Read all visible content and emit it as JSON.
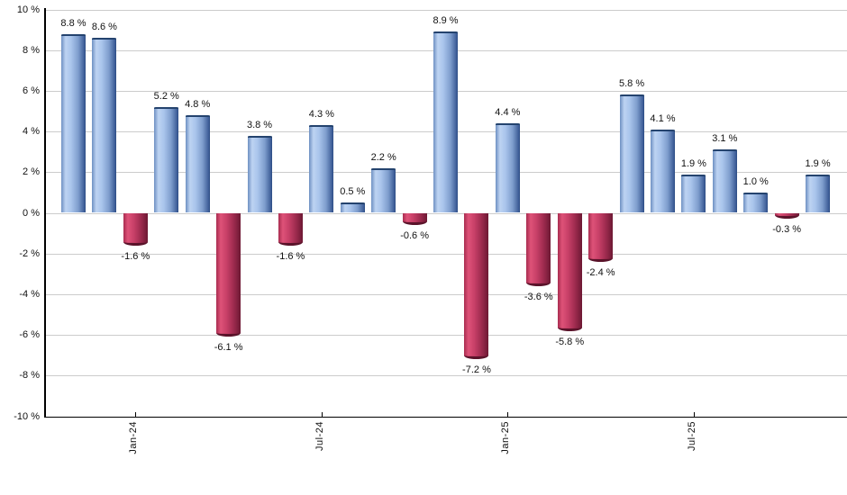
{
  "chart_data": {
    "type": "bar",
    "title": "",
    "xlabel": "",
    "ylabel": "",
    "ylim": [
      -10,
      10
    ],
    "y_tick_step": 2,
    "grid": true,
    "legend": "none",
    "positive_color": "#8FB2E4",
    "negative_color": "#C8395F",
    "gridline_color": "#CCCCCC",
    "axis_color": "#000000",
    "y_ticks": [
      {
        "value": 10,
        "label": "10 %"
      },
      {
        "value": 8,
        "label": "8 %"
      },
      {
        "value": 6,
        "label": "6 %"
      },
      {
        "value": 4,
        "label": "4 %"
      },
      {
        "value": 2,
        "label": "2 %"
      },
      {
        "value": 0,
        "label": "0 %"
      },
      {
        "value": -2,
        "label": "-2 %"
      },
      {
        "value": -4,
        "label": "-4 %"
      },
      {
        "value": -6,
        "label": "-6 %"
      },
      {
        "value": -8,
        "label": "-8 %"
      },
      {
        "value": -10,
        "label": "-10 %"
      }
    ],
    "x_ticks": [
      {
        "bar_index": 3,
        "label": "Jan-24"
      },
      {
        "bar_index": 9,
        "label": "Jul-24"
      },
      {
        "bar_index": 15,
        "label": "Jan-25"
      },
      {
        "bar_index": 21,
        "label": "Jul-25"
      }
    ],
    "bars": [
      {
        "value": 8.8,
        "label": "8.8 %"
      },
      {
        "value": 8.6,
        "label": "8.6 %"
      },
      {
        "value": -1.6,
        "label": "-1.6 %"
      },
      {
        "value": 5.2,
        "label": "5.2 %"
      },
      {
        "value": 4.8,
        "label": "4.8 %"
      },
      {
        "value": -6.1,
        "label": "-6.1 %"
      },
      {
        "value": 3.8,
        "label": "3.8 %"
      },
      {
        "value": -1.6,
        "label": "-1.6 %"
      },
      {
        "value": 4.3,
        "label": "4.3 %"
      },
      {
        "value": 0.5,
        "label": "0.5 %"
      },
      {
        "value": 2.2,
        "label": "2.2 %"
      },
      {
        "value": -0.6,
        "label": "-0.6 %"
      },
      {
        "value": 8.9,
        "label": "8.9 %"
      },
      {
        "value": -7.2,
        "label": "-7.2 %"
      },
      {
        "value": 4.4,
        "label": "4.4 %"
      },
      {
        "value": -3.6,
        "label": "-3.6 %"
      },
      {
        "value": -5.8,
        "label": "-5.8 %"
      },
      {
        "value": -2.4,
        "label": "-2.4 %"
      },
      {
        "value": 5.8,
        "label": "5.8 %"
      },
      {
        "value": 4.1,
        "label": "4.1 %"
      },
      {
        "value": 1.9,
        "label": "1.9 %"
      },
      {
        "value": 3.1,
        "label": "3.1 %"
      },
      {
        "value": 1.0,
        "label": "1.0 %"
      },
      {
        "value": -0.3,
        "label": "-0.3 %"
      },
      {
        "value": 1.9,
        "label": "1.9 %"
      }
    ]
  }
}
